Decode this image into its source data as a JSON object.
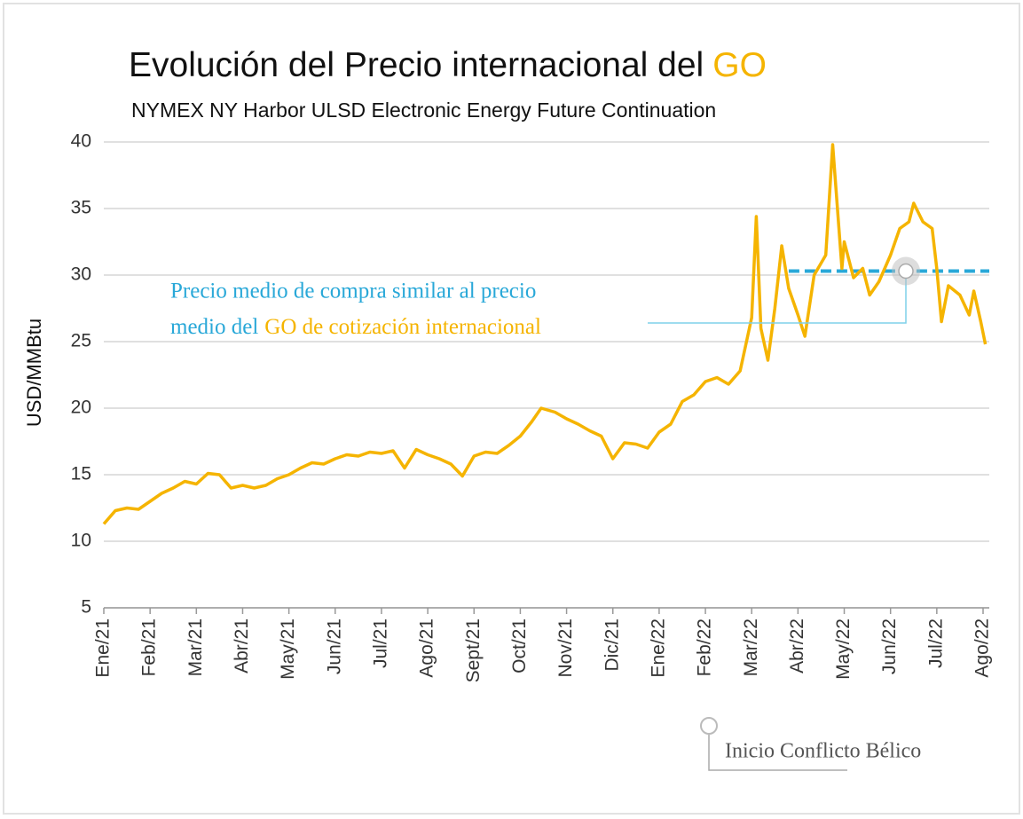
{
  "chart_data": {
    "type": "line",
    "title": "Evolución del Precio internacional del",
    "title_highlight": "GO",
    "subtitle": "NYMEX NY Harbor ULSD Electronic Energy Future Continuation",
    "y_label": "USD/MMBtu",
    "xlim": [
      0,
      19.1
    ],
    "xticks": [
      {
        "value": 0,
        "label": "Ene/21"
      },
      {
        "value": 1,
        "label": "Feb/21"
      },
      {
        "value": 2,
        "label": "Mar/21"
      },
      {
        "value": 3,
        "label": "Abr/21"
      },
      {
        "value": 4,
        "label": "May/21"
      },
      {
        "value": 5,
        "label": "Jun/21"
      },
      {
        "value": 6,
        "label": "Jul/21"
      },
      {
        "value": 7,
        "label": "Ago/21"
      },
      {
        "value": 8,
        "label": "Sept/21"
      },
      {
        "value": 9,
        "label": "Oct/21"
      },
      {
        "value": 10,
        "label": "Nov/21"
      },
      {
        "value": 11,
        "label": "Dic/21"
      },
      {
        "value": 12,
        "label": "Ene/22"
      },
      {
        "value": 13,
        "label": "Feb/22"
      },
      {
        "value": 14,
        "label": "Mar/22"
      },
      {
        "value": 15,
        "label": "Abr/22"
      },
      {
        "value": 16,
        "label": "May/22"
      },
      {
        "value": 17,
        "label": "Jun/22"
      },
      {
        "value": 18,
        "label": "Jul/22"
      },
      {
        "value": 19,
        "label": "Ago/22"
      }
    ],
    "ylim": [
      5,
      40
    ],
    "yticks": [
      5,
      10,
      15,
      20,
      25,
      30,
      35,
      40
    ],
    "grid": true,
    "series": [
      {
        "name": "GO",
        "color": "#f5b400",
        "x": [
          0,
          0.25,
          0.5,
          0.75,
          1,
          1.25,
          1.5,
          1.75,
          2,
          2.25,
          2.5,
          2.75,
          3,
          3.25,
          3.5,
          3.75,
          4,
          4.25,
          4.5,
          4.75,
          5,
          5.25,
          5.5,
          5.75,
          6,
          6.25,
          6.5,
          6.75,
          7,
          7.25,
          7.5,
          7.75,
          8,
          8.25,
          8.5,
          8.75,
          9,
          9.25,
          9.45,
          9.75,
          10,
          10.25,
          10.5,
          10.75,
          11,
          11.25,
          11.5,
          11.75,
          12,
          12.25,
          12.5,
          12.75,
          13,
          13.25,
          13.5,
          13.75,
          14,
          14.1,
          14.2,
          14.35,
          14.5,
          14.65,
          14.8,
          15,
          15.15,
          15.35,
          15.6,
          15.75,
          15.95,
          16,
          16.2,
          16.4,
          16.55,
          16.75,
          17,
          17.2,
          17.4,
          17.5,
          17.7,
          17.9,
          18,
          18.1,
          18.25,
          18.5,
          18.7,
          18.8,
          18.95,
          19.05
        ],
        "values": [
          11.3,
          12.3,
          12.5,
          12.4,
          13.0,
          13.6,
          14.0,
          14.5,
          14.3,
          15.1,
          15.0,
          14.0,
          14.2,
          14.0,
          14.2,
          14.7,
          15.0,
          15.5,
          15.9,
          15.8,
          16.2,
          16.5,
          16.4,
          16.7,
          16.6,
          16.8,
          15.5,
          16.9,
          16.5,
          16.2,
          15.8,
          14.9,
          16.4,
          16.7,
          16.6,
          17.2,
          17.9,
          19.0,
          20.0,
          19.7,
          19.2,
          18.8,
          18.3,
          17.9,
          16.2,
          17.4,
          17.3,
          17.0,
          18.2,
          18.8,
          20.5,
          21.0,
          22.0,
          22.3,
          21.8,
          22.8,
          26.8,
          34.4,
          26.0,
          23.6,
          27.5,
          32.2,
          29.0,
          27.0,
          25.4,
          30.0,
          31.5,
          39.8,
          30.5,
          32.5,
          29.8,
          30.5,
          28.5,
          29.5,
          31.5,
          33.5,
          34.0,
          35.4,
          34.0,
          33.5,
          30.5,
          26.5,
          29.2,
          28.5,
          27.0,
          28.8,
          26.5,
          24.8
        ]
      }
    ],
    "reference_value": 30.3,
    "reference_start": 14.8,
    "reference_color": "#29a8d8",
    "annotation_line1": "Precio medio de compra similar al precio",
    "annotation_line2": "medio del",
    "annotation_line2_highlight": "GO de cotización internacional",
    "event_label": "Inicio Conflicto Bélico"
  }
}
